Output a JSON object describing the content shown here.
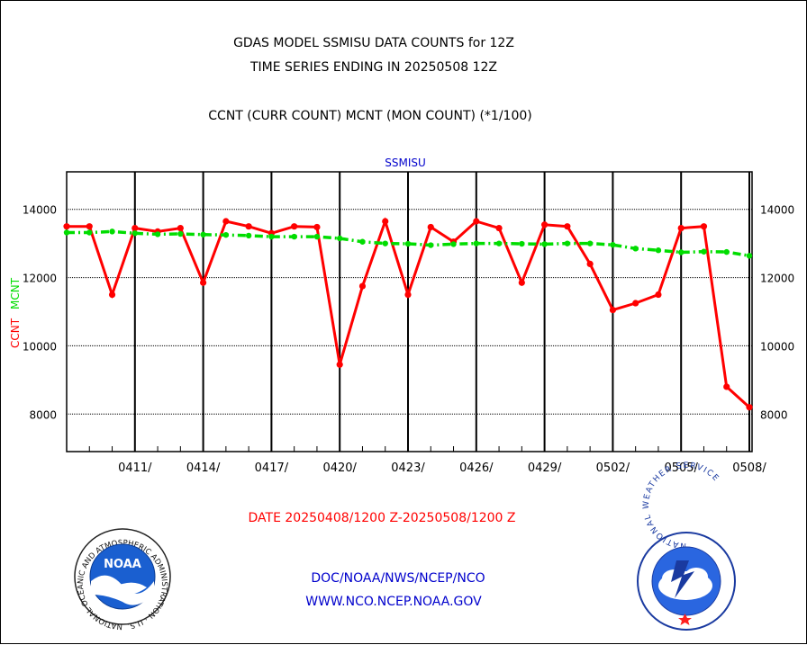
{
  "header": {
    "title_line1": "GDAS MODEL SSMISU DATA COUNTS for 12Z",
    "title_line2": "TIME SERIES ENDING IN 20250508 12Z",
    "subtitle": "CCNT (CURR COUNT) MCNT (MON COUNT) (*1/100)"
  },
  "footer": {
    "date_range": "DATE 20250408/1200 Z-20250508/1200 Z",
    "link1": "DOC/NOAA/NWS/NCEP/NCO",
    "link2": "WWW.NCO.NCEP.NOAA.GOV"
  },
  "logos": {
    "noaa_text": "NOAA",
    "noaa_ring": "NATIONAL OCEANIC AND ATMOSPHERIC ADMINISTRATION · U.S. DEPARTMENT OF COMMERCE ·",
    "nws_ring": "NATIONAL WEATHER SERVICE"
  },
  "colors": {
    "ccnt": "#ff0000",
    "mcnt": "#00dd00",
    "title_blue": "#0000cc",
    "date_red": "#ff0000"
  },
  "chart_data": {
    "type": "line",
    "title": "SSMISU",
    "ylabel_ccnt": "CCNT",
    "ylabel_mcnt": "MCNT",
    "x_start": 0,
    "x_end": 30,
    "ylim": [
      6900,
      15100
    ],
    "yticks": [
      8000,
      10000,
      12000,
      14000
    ],
    "grid": true,
    "x_tick_labels": [
      {
        "x": 3,
        "label": "0411/"
      },
      {
        "x": 6,
        "label": "0414/"
      },
      {
        "x": 9,
        "label": "0417/"
      },
      {
        "x": 12,
        "label": "0420/"
      },
      {
        "x": 15,
        "label": "0423/"
      },
      {
        "x": 18,
        "label": "0426/"
      },
      {
        "x": 21,
        "label": "0429/"
      },
      {
        "x": 24,
        "label": "0502/"
      },
      {
        "x": 27,
        "label": "0505/"
      },
      {
        "x": 30,
        "label": "0508/"
      }
    ],
    "series": [
      {
        "name": "CCNT",
        "style": "solid",
        "x": [
          0,
          1,
          2,
          3,
          4,
          5,
          6,
          7,
          8,
          9,
          10,
          11,
          12,
          13,
          14,
          15,
          16,
          17,
          18,
          19,
          20,
          21,
          22,
          23,
          24,
          25,
          26,
          27,
          28,
          29,
          30
        ],
        "values": [
          13500,
          13500,
          11500,
          13450,
          13350,
          13450,
          11850,
          13650,
          13500,
          13300,
          13500,
          13480,
          9450,
          11750,
          13650,
          11500,
          13480,
          13050,
          13650,
          13450,
          11850,
          13550,
          13500,
          12400,
          11050,
          11250,
          11500,
          13450,
          13500,
          8800,
          8200
        ]
      },
      {
        "name": "MCNT",
        "style": "dash-dot",
        "x": [
          0,
          1,
          2,
          3,
          4,
          5,
          6,
          7,
          8,
          9,
          10,
          11,
          12,
          13,
          14,
          15,
          16,
          17,
          18,
          19,
          20,
          21,
          22,
          23,
          24,
          25,
          26,
          27,
          28,
          29,
          30
        ],
        "values": [
          13320,
          13320,
          13350,
          13300,
          13270,
          13280,
          13260,
          13250,
          13230,
          13200,
          13200,
          13200,
          13150,
          13050,
          13000,
          12990,
          12950,
          12980,
          13000,
          13000,
          12990,
          12980,
          13000,
          13000,
          12960,
          12850,
          12800,
          12740,
          12760,
          12750,
          12640
        ]
      }
    ]
  }
}
